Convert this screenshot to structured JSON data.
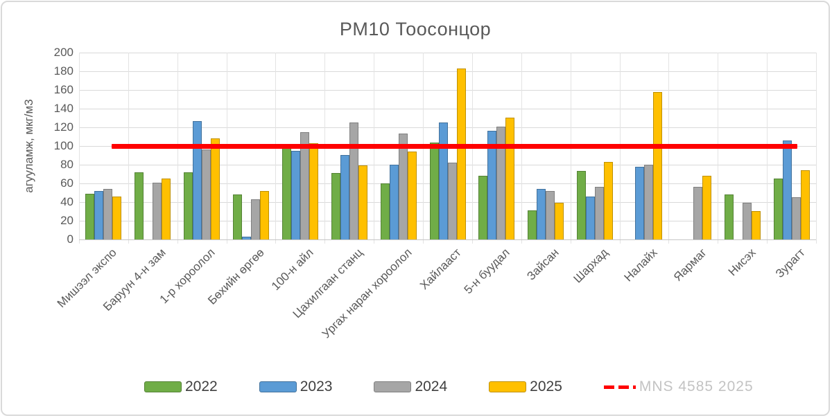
{
  "chart_data": {
    "type": "bar",
    "title": "PM10 Тоосонцор",
    "ylabel": "агууламж, мкг/м3",
    "xlabel": "",
    "ylim": [
      0,
      200
    ],
    "ytick_step": 20,
    "yticks": [
      0,
      20,
      40,
      60,
      80,
      100,
      120,
      140,
      160,
      180,
      200
    ],
    "grid": true,
    "legend_position": "bottom",
    "categories": [
      "Мишээл экспо",
      "Баруун 4-н зам",
      "1-р хороолол",
      "Бөхийн өргөө",
      "100-н айл",
      "Цахилгаан станц",
      "Ургах наран хороолол",
      "Хайлааст",
      "5-н буудал",
      "Зайсан",
      "Шархад",
      "Налайх",
      "Яармаг",
      "Нисэх",
      "Зурагт"
    ],
    "series": [
      {
        "name": "2022",
        "color": "#70AD47",
        "border_color": "#548235",
        "values": [
          49,
          72,
          72,
          48,
          102,
          71,
          60,
          104,
          68,
          31,
          73,
          null,
          null,
          48,
          65
        ]
      },
      {
        "name": "2023",
        "color": "#5B9BD5",
        "border_color": "#41719C",
        "values": [
          52,
          null,
          127,
          3,
          95,
          90,
          80,
          125,
          116,
          54,
          46,
          78,
          null,
          null,
          106
        ]
      },
      {
        "name": "2024",
        "color": "#A6A6A6",
        "border_color": "#7F7F7F",
        "values": [
          54,
          61,
          96,
          43,
          115,
          125,
          113,
          82,
          121,
          52,
          56,
          80,
          56,
          39,
          45
        ]
      },
      {
        "name": "2025",
        "color": "#FFC000",
        "border_color": "#BF9000",
        "values": [
          46,
          65,
          108,
          52,
          103,
          79,
          94,
          183,
          130,
          39,
          83,
          158,
          68,
          30,
          74
        ]
      }
    ],
    "reference_line": {
      "label": "MNS 4585 2025",
      "value": 100,
      "color": "#FF0000",
      "style": "dashed"
    }
  }
}
